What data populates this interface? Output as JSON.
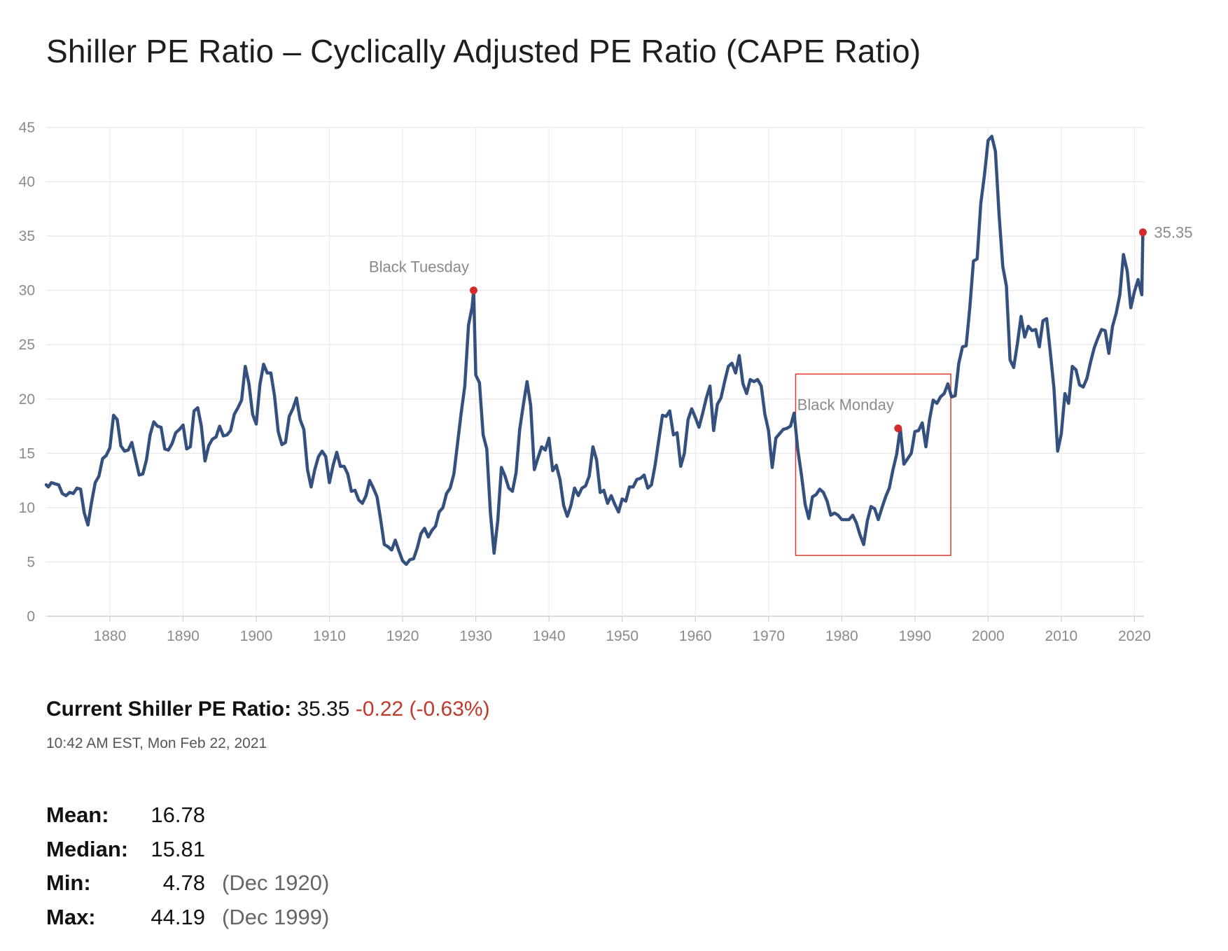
{
  "title": "Shiller PE Ratio – Cyclically Adjusted PE Ratio (CAPE Ratio)",
  "chart_data": {
    "type": "line",
    "title": "",
    "xlabel": "",
    "ylabel": "",
    "xlim": [
      1871.3,
      2021.3
    ],
    "ylim": [
      0,
      45
    ],
    "y_ticks": [
      "0",
      "5",
      "10",
      "15",
      "20",
      "25",
      "30",
      "35",
      "40",
      "45"
    ],
    "x_ticks": [
      "1880",
      "1890",
      "1900",
      "1910",
      "1920",
      "1930",
      "1940",
      "1950",
      "1960",
      "1970",
      "1980",
      "1990",
      "2000",
      "2010",
      "2020"
    ],
    "grid": true,
    "line_color": "#34507e",
    "marker_color": "#d42b2b",
    "box_color": "#e03c31",
    "series": [
      {
        "x": [
          1871.3,
          1871.6,
          1872,
          1872.5,
          1873,
          1873.5,
          1874,
          1874.5,
          1875,
          1875.5,
          1876,
          1876.5,
          1877,
          1877.5,
          1878,
          1878.5,
          1879,
          1879.5,
          1880,
          1880.5,
          1881,
          1881.5,
          1882,
          1882.5,
          1883,
          1883.5,
          1884,
          1884.5,
          1885,
          1885.5,
          1886,
          1886.5,
          1887,
          1887.5,
          1888,
          1888.5,
          1889,
          1889.5,
          1890,
          1890.5,
          1891,
          1891.5,
          1892,
          1892.5,
          1893,
          1893.5,
          1894,
          1894.5,
          1895,
          1895.5,
          1896,
          1896.5,
          1897,
          1897.5,
          1898,
          1898.5,
          1899,
          1899.5,
          1900,
          1900.5,
          1901,
          1901.5,
          1902,
          1902.5,
          1903,
          1903.5,
          1904,
          1904.5,
          1905,
          1905.5,
          1906,
          1906.5,
          1907,
          1907.5,
          1908,
          1908.5,
          1909,
          1909.5,
          1910,
          1910.5,
          1911,
          1911.5,
          1912,
          1912.5,
          1913,
          1913.5,
          1914,
          1914.5,
          1915,
          1915.5,
          1916,
          1916.5,
          1917,
          1917.5,
          1918,
          1918.5,
          1919,
          1919.5,
          1920,
          1920.5,
          1921,
          1921.5,
          1922,
          1922.5,
          1923,
          1923.5,
          1924,
          1924.5,
          1925,
          1925.5,
          1926,
          1926.5,
          1927,
          1927.5,
          1928,
          1928.5,
          1929,
          1929.5,
          1929.7,
          1930,
          1930.5,
          1931,
          1931.5,
          1932,
          1932.5,
          1933,
          1933.5,
          1934,
          1934.5,
          1935,
          1935.5,
          1936,
          1936.5,
          1937,
          1937.5,
          1938,
          1938.5,
          1939,
          1939.5,
          1940,
          1940.5,
          1941,
          1941.5,
          1942,
          1942.5,
          1943,
          1943.5,
          1944,
          1944.5,
          1945,
          1945.5,
          1946,
          1946.5,
          1947,
          1947.5,
          1948,
          1948.5,
          1949,
          1949.5,
          1950,
          1950.5,
          1951,
          1951.5,
          1952,
          1952.5,
          1953,
          1953.5,
          1954,
          1954.5,
          1955,
          1955.5,
          1956,
          1956.5,
          1957,
          1957.5,
          1958,
          1958.5,
          1959,
          1959.5,
          1960,
          1960.5,
          1961,
          1961.5,
          1962,
          1962.5,
          1963,
          1963.5,
          1964,
          1964.5,
          1965,
          1965.5,
          1966,
          1966.5,
          1967,
          1967.5,
          1968,
          1968.5,
          1969,
          1969.5,
          1970,
          1970.5,
          1971,
          1971.5,
          1972,
          1972.5,
          1973,
          1973.5,
          1974,
          1974.5,
          1975,
          1975.5,
          1976,
          1976.5,
          1977,
          1977.5,
          1978,
          1978.5,
          1979,
          1979.5,
          1980,
          1980.5,
          1981,
          1981.5,
          1982,
          1982.5,
          1983,
          1983.5,
          1984,
          1984.5,
          1985,
          1985.5,
          1986,
          1986.5,
          1987,
          1987.5,
          1988,
          1988.5,
          1989,
          1989.5,
          1990,
          1990.5,
          1991,
          1991.5,
          1992,
          1992.5,
          1993,
          1993.5,
          1994,
          1994.5,
          1995,
          1995.5,
          1996,
          1996.5,
          1997,
          1997.5,
          1998,
          1998.5,
          1999,
          1999.5,
          2000,
          2000.5,
          2001,
          2001.5,
          2002,
          2002.5,
          2003,
          2003.5,
          2004,
          2004.5,
          2005,
          2005.5,
          2006,
          2006.5,
          2007,
          2007.5,
          2008,
          2008.5,
          2009,
          2009.5,
          2010,
          2010.5,
          2011,
          2011.5,
          2012,
          2012.5,
          2013,
          2013.5,
          2014,
          2014.5,
          2015,
          2015.5,
          2016,
          2016.5,
          2017,
          2017.5,
          2018,
          2018.5,
          2019,
          2019.5,
          2020,
          2020.5,
          2021,
          2021.15
        ],
        "values": [
          12.1,
          11.9,
          12.3,
          12.2,
          12.1,
          11.3,
          11.1,
          11.4,
          11.3,
          11.8,
          11.7,
          9.5,
          8.4,
          10.5,
          12.3,
          12.9,
          14.5,
          14.8,
          15.5,
          18.5,
          18.1,
          15.7,
          15.2,
          15.3,
          16,
          14.5,
          13,
          13.1,
          14.4,
          16.7,
          17.9,
          17.5,
          17.4,
          15.4,
          15.3,
          15.9,
          16.9,
          17.2,
          17.6,
          15.4,
          15.6,
          18.9,
          19.2,
          17.5,
          14.3,
          15.7,
          16.3,
          16.5,
          17.5,
          16.6,
          16.7,
          17.1,
          18.6,
          19.2,
          19.9,
          23,
          21.4,
          18.6,
          17.7,
          21.3,
          23.2,
          22.4,
          22.4,
          20.3,
          17,
          15.8,
          16,
          18.4,
          19.1,
          20.1,
          18.1,
          17.2,
          13.5,
          11.9,
          13.5,
          14.7,
          15.2,
          14.7,
          12.3,
          13.9,
          15.1,
          13.8,
          13.8,
          13.1,
          11.5,
          11.6,
          10.7,
          10.4,
          11.1,
          12.5,
          11.8,
          11,
          8.9,
          6.6,
          6.4,
          6.1,
          7,
          6,
          5.1,
          4.78,
          5.2,
          5.3,
          6.3,
          7.6,
          8.1,
          7.3,
          7.9,
          8.3,
          9.6,
          10,
          11.3,
          11.8,
          13.1,
          15.9,
          18.7,
          21.2,
          26.8,
          28.5,
          30,
          22.2,
          21.5,
          16.7,
          15.4,
          9.5,
          5.8,
          8.8,
          13.7,
          12.9,
          11.8,
          11.5,
          13.2,
          17.2,
          19.5,
          21.6,
          19.4,
          13.5,
          14.6,
          15.6,
          15.3,
          16.4,
          13.4,
          13.9,
          12.6,
          10.2,
          9.2,
          10.2,
          11.8,
          11.1,
          11.8,
          12,
          12.9,
          15.6,
          14.4,
          11.4,
          11.6,
          10.4,
          11.1,
          10.3,
          9.6,
          10.8,
          10.6,
          11.9,
          11.9,
          12.6,
          12.7,
          13,
          11.8,
          12.1,
          13.9,
          16.2,
          18.5,
          18.4,
          18.9,
          16.7,
          16.9,
          13.8,
          15,
          18.1,
          19.1,
          18.3,
          17.4,
          18.7,
          20.1,
          21.2,
          17.1,
          19.5,
          20.1,
          21.6,
          23,
          23.3,
          22.4,
          24,
          21.4,
          20.5,
          21.8,
          21.6,
          21.8,
          21.2,
          18.6,
          17.1,
          13.7,
          16.4,
          16.8,
          17.2,
          17.3,
          17.5,
          18.7,
          15.3,
          13,
          10.3,
          9,
          11,
          11.2,
          11.7,
          11.4,
          10.6,
          9.3,
          9.5,
          9.3,
          8.9,
          8.9,
          8.9,
          9.3,
          8.6,
          7.5,
          6.6,
          8.8,
          10.1,
          9.9,
          8.9,
          10,
          11,
          11.8,
          13.5,
          14.9,
          17.3,
          14,
          14.5,
          15,
          17,
          17.1,
          17.8,
          15.6,
          18.1,
          19.9,
          19.6,
          20.2,
          20.5,
          21.4,
          20.2,
          20.3,
          23.3,
          24.8,
          24.9,
          28.4,
          32.7,
          32.9,
          38,
          40.6,
          43.8,
          44.19,
          42.8,
          37,
          32.2,
          30.4,
          23.6,
          22.9,
          25.1,
          27.6,
          25.7,
          26.7,
          26.3,
          26.4,
          24.8,
          27.2,
          27.4,
          24.3,
          21,
          15.2,
          16.8,
          20.5,
          19.6,
          23,
          22.7,
          21.3,
          21.1,
          21.9,
          23.4,
          24.7,
          25.6,
          26.4,
          26.3,
          24.2,
          26.7,
          27.9,
          29.6,
          33.3,
          31.8,
          28.4,
          29.9,
          31,
          29.6,
          35.35
        ]
      }
    ],
    "annotations": [
      {
        "label": "Black Tuesday",
        "x": 1929.7,
        "y": 30
      },
      {
        "label": "Black Monday",
        "x": 1987.7,
        "y": 17.3
      },
      {
        "label": "35.35",
        "x": 2021.15,
        "y": 35.35
      }
    ],
    "highlight_box": {
      "x0": 1973.7,
      "x1": 1994.9,
      "y0": 5.6,
      "y1": 22.3
    }
  },
  "summary": {
    "current_label": "Current Shiller PE Ratio:",
    "current_value": "35.35",
    "current_change": "-0.22 (-0.63%)",
    "timestamp": "10:42 AM EST, Mon Feb 22, 2021"
  },
  "stats": [
    {
      "label": "Mean:",
      "value": "16.78",
      "date": ""
    },
    {
      "label": "Median:",
      "value": "15.81",
      "date": ""
    },
    {
      "label": "Min:",
      "value": "4.78",
      "date": "(Dec 1920)"
    },
    {
      "label": "Max:",
      "value": "44.19",
      "date": "(Dec 1999)"
    }
  ]
}
